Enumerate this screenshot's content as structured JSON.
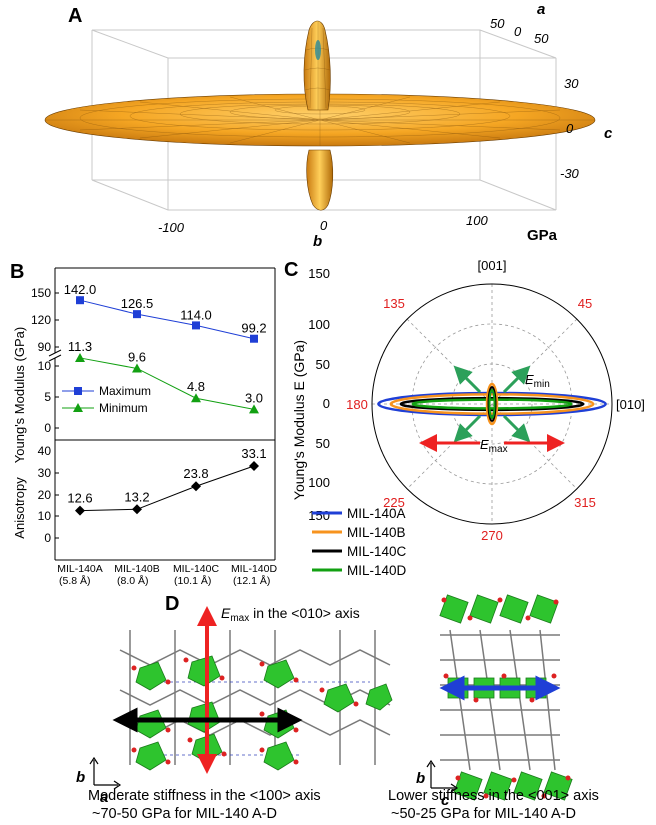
{
  "panels": {
    "A": {
      "letter": "A",
      "axis_a_label": "a",
      "axis_b_label": "b",
      "axis_c_label": "c",
      "unit": "GPa",
      "a_ticks": [
        "50",
        "0",
        "50"
      ],
      "c_ticks": [
        "30",
        "0",
        "-30"
      ],
      "b_ticks": [
        "-100",
        "0",
        "100"
      ]
    },
    "B": {
      "letter": "B",
      "ylabel_top": "Young's Modulus (GPa)",
      "ylabel_bottom": "Anisotropy",
      "x_categories": [
        "MIL-140A",
        "MIL-140B",
        "MIL-140C",
        "MIL-140D"
      ],
      "x_subcategories": [
        "(5.8 Å)",
        "(8.0 Å)",
        "(10.1 Å)",
        "(12.1 Å)"
      ],
      "legend": [
        "Maximum",
        "Minimum"
      ]
    },
    "C": {
      "letter": "C",
      "ylabel": "Young's Modulus E (GPa)",
      "angle_labels": [
        "135",
        "45",
        "180",
        "225",
        "315",
        "270"
      ],
      "dir_top": "[001]",
      "dir_right": "[010]",
      "emin_label": "E",
      "emin_sub": "min",
      "emax_label": "E",
      "emax_sub": "max",
      "radial_ticks": [
        "150",
        "100",
        "50",
        "0",
        "50",
        "100",
        "150"
      ],
      "legend": [
        "MIL-140A",
        "MIL-140B",
        "MIL-140C",
        "MIL-140D"
      ]
    },
    "D": {
      "letter": "D",
      "emax_title_E": "E",
      "emax_title_sub": "max",
      "emax_title_rest": " in the <010> axis",
      "left_axis_b": "b",
      "left_axis_a": "a",
      "right_axis_b": "b",
      "right_axis_c": "c",
      "caption_left_1": "Moderate stiffness in the <100> axis",
      "caption_left_2": "~70-50 GPa for MIL-140 A-D",
      "caption_right_1": "Lower stiffness in the <001> axis",
      "caption_right_2": "~50-25 GPa for MIL-140 A-D"
    }
  },
  "colors": {
    "blue": "#1f3fd6",
    "orange": "#f7931e",
    "black": "#000000",
    "green": "#12a012",
    "red_arrow": "#ee2222",
    "surface_orange": "#f0a020",
    "angle_red": "#e02020"
  },
  "chart_data": [
    {
      "type": "line",
      "title": "",
      "xlabel": "",
      "ylabel": "Young's Modulus (GPa)",
      "categories": [
        "MIL-140A",
        "MIL-140B",
        "MIL-140C",
        "MIL-140D"
      ],
      "series": [
        {
          "name": "Maximum",
          "values": [
            142.0,
            126.5,
            114.0,
            99.2
          ],
          "labels": [
            "142.0",
            "126.5",
            "114.0",
            "99.2"
          ]
        },
        {
          "name": "Minimum",
          "values": [
            11.3,
            9.6,
            4.8,
            3.0
          ],
          "labels": [
            "11.3",
            "9.6",
            "4.8",
            "3.0"
          ]
        }
      ],
      "y_ticks_upper": [
        "150",
        "120",
        "90"
      ],
      "y_ticks_lower": [
        "10",
        "5",
        "0"
      ],
      "broken_axis": true
    },
    {
      "type": "line",
      "title": "",
      "xlabel": "",
      "ylabel": "Anisotropy",
      "categories": [
        "MIL-140A",
        "MIL-140B",
        "MIL-140C",
        "MIL-140D"
      ],
      "series": [
        {
          "values": [
            12.6,
            13.2,
            23.8,
            33.1
          ],
          "labels": [
            "12.6",
            "13.2",
            "23.8",
            "33.1"
          ]
        }
      ],
      "ylim": [
        0,
        40
      ],
      "y_ticks": [
        "40",
        "30",
        "20",
        "10",
        "0"
      ]
    },
    {
      "type": "polar",
      "title": "",
      "ylabel": "Young's Modulus E (GPa)",
      "rlim": [
        0,
        150
      ],
      "series": [
        {
          "name": "MIL-140A",
          "emax": 142.0,
          "emin": 11.3
        },
        {
          "name": "MIL-140B",
          "emax": 126.5,
          "emin": 9.6
        },
        {
          "name": "MIL-140C",
          "emax": 114.0,
          "emin": 4.8
        },
        {
          "name": "MIL-140D",
          "emax": 99.2,
          "emin": 3.0
        }
      ]
    }
  ]
}
